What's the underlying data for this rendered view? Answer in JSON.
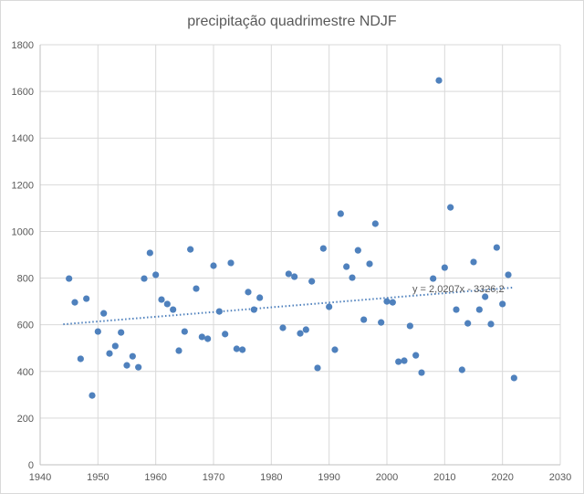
{
  "chart_data": {
    "type": "scatter",
    "title": "precipitação quadrimestre NDJF",
    "xlabel": "",
    "ylabel": "",
    "xlim": [
      1940,
      2030
    ],
    "ylim": [
      0,
      1800
    ],
    "xticks": [
      1940,
      1950,
      1960,
      1970,
      1980,
      1990,
      2000,
      2010,
      2020,
      2030
    ],
    "yticks": [
      0,
      200,
      400,
      600,
      800,
      1000,
      1200,
      1400,
      1600,
      1800
    ],
    "grid": true,
    "marker_color": "#4f81bd",
    "series": [
      {
        "name": "precipitação",
        "x": [
          1945,
          1946,
          1947,
          1948,
          1949,
          1950,
          1951,
          1952,
          1953,
          1954,
          1955,
          1956,
          1957,
          1958,
          1959,
          1960,
          1961,
          1962,
          1963,
          1964,
          1965,
          1966,
          1967,
          1968,
          1969,
          1970,
          1971,
          1972,
          1973,
          1974,
          1975,
          1976,
          1977,
          1978,
          1982,
          1983,
          1984,
          1985,
          1986,
          1987,
          1988,
          1989,
          1990,
          1991,
          1992,
          1993,
          1994,
          1995,
          1996,
          1997,
          1998,
          1999,
          2000,
          2001,
          2002,
          2003,
          2004,
          2005,
          2006,
          2008,
          2009,
          2010,
          2011,
          2012,
          2013,
          2014,
          2015,
          2016,
          2017,
          2018,
          2019,
          2020,
          2021,
          2022
        ],
        "y": [
          798,
          696,
          454,
          712,
          297,
          571,
          649,
          477,
          509,
          567,
          426,
          465,
          418,
          798,
          908,
          814,
          708,
          689,
          665,
          489,
          571,
          923,
          755,
          548,
          540,
          853,
          657,
          560,
          865,
          497,
          493,
          740,
          665,
          716,
          587,
          818,
          806,
          563,
          579,
          786,
          415,
          927,
          677,
          493,
          1076,
          849,
          802,
          919,
          622,
          861,
          1033,
          610,
          700,
          696,
          442,
          446,
          595,
          469,
          395,
          798,
          1647,
          845,
          1103,
          665,
          407,
          606,
          869,
          665,
          720,
          603,
          931,
          689,
          814,
          372
        ]
      }
    ],
    "trendline": {
      "type": "linear",
      "slope": 2.0207,
      "intercept": -3326.2,
      "x_range": [
        1944,
        2022
      ],
      "label": "y = 2,0207x - 3326,2"
    }
  }
}
